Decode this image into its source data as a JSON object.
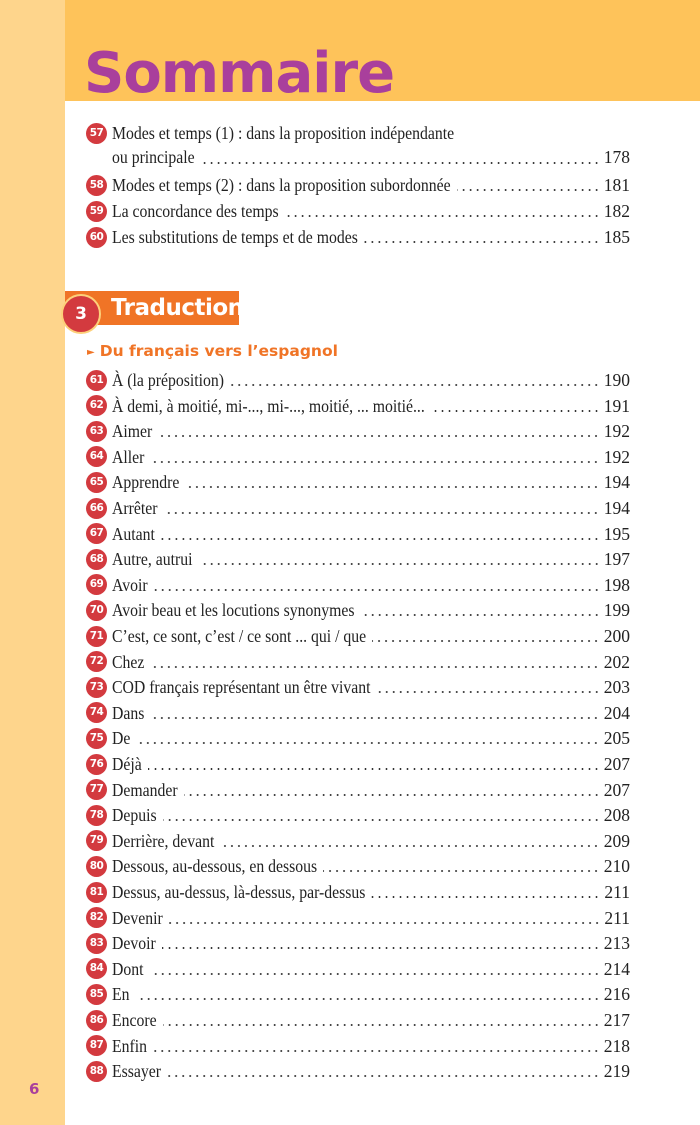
{
  "title": "Sommaire",
  "page_number": "6",
  "colors": {
    "title": "#a93f9c",
    "band": "#fec35a",
    "strip": "#fed58c",
    "badge": "#d33a3f",
    "section": "#f07426"
  },
  "top_entries": [
    {
      "num": "57",
      "line1": "Modes et temps (1) : dans la proposition indépendante",
      "line2": "ou principale",
      "page": "178"
    },
    {
      "num": "58",
      "label": "Modes et temps (2) : dans la proposition subordonnée",
      "page": "181"
    },
    {
      "num": "59",
      "label": "La concordance des temps",
      "page": "182"
    },
    {
      "num": "60",
      "label": "Les substitutions de temps et de modes",
      "page": "185"
    }
  ],
  "section": {
    "number": "3",
    "label": "Traduction",
    "subsection_icon": "triangle-right-icon",
    "subsection": "Du français vers l’espagnol"
  },
  "entries": [
    {
      "num": "61",
      "label": "À (la préposition)",
      "page": "190"
    },
    {
      "num": "62",
      "label": "À demi, à moitié, mi-..., mi-..., moitié, ... moitié...",
      "page": "191"
    },
    {
      "num": "63",
      "label": "Aimer",
      "page": "192"
    },
    {
      "num": "64",
      "label": "Aller",
      "page": "192"
    },
    {
      "num": "65",
      "label": "Apprendre",
      "page": "194"
    },
    {
      "num": "66",
      "label": "Arrêter",
      "page": "194"
    },
    {
      "num": "67",
      "label": "Autant",
      "page": "195"
    },
    {
      "num": "68",
      "label": "Autre, autrui",
      "page": "197"
    },
    {
      "num": "69",
      "label": "Avoir",
      "page": "198"
    },
    {
      "num": "70",
      "label": "Avoir beau et les locutions synonymes",
      "page": "199"
    },
    {
      "num": "71",
      "label": "C’est, ce sont, c’est / ce sont ... qui / que",
      "page": "200"
    },
    {
      "num": "72",
      "label": "Chez",
      "page": "202"
    },
    {
      "num": "73",
      "label": "COD français représentant un être vivant",
      "page": "203"
    },
    {
      "num": "74",
      "label": "Dans",
      "page": "204"
    },
    {
      "num": "75",
      "label": "De",
      "page": "205"
    },
    {
      "num": "76",
      "label": "Déjà",
      "page": "207"
    },
    {
      "num": "77",
      "label": "Demander",
      "page": "207"
    },
    {
      "num": "78",
      "label": "Depuis",
      "page": "208"
    },
    {
      "num": "79",
      "label": "Derrière, devant",
      "page": "209"
    },
    {
      "num": "80",
      "label": "Dessous, au-dessous, en dessous",
      "page": "210"
    },
    {
      "num": "81",
      "label": "Dessus, au-dessus, là-dessus, par-dessus",
      "page": "211"
    },
    {
      "num": "82",
      "label": "Devenir",
      "page": "211"
    },
    {
      "num": "83",
      "label": "Devoir",
      "page": "213"
    },
    {
      "num": "84",
      "label": "Dont",
      "page": "214"
    },
    {
      "num": "85",
      "label": "En",
      "page": "216"
    },
    {
      "num": "86",
      "label": "Encore",
      "page": "217"
    },
    {
      "num": "87",
      "label": "Enfin",
      "page": "218"
    },
    {
      "num": "88",
      "label": "Essayer",
      "page": "219"
    }
  ]
}
